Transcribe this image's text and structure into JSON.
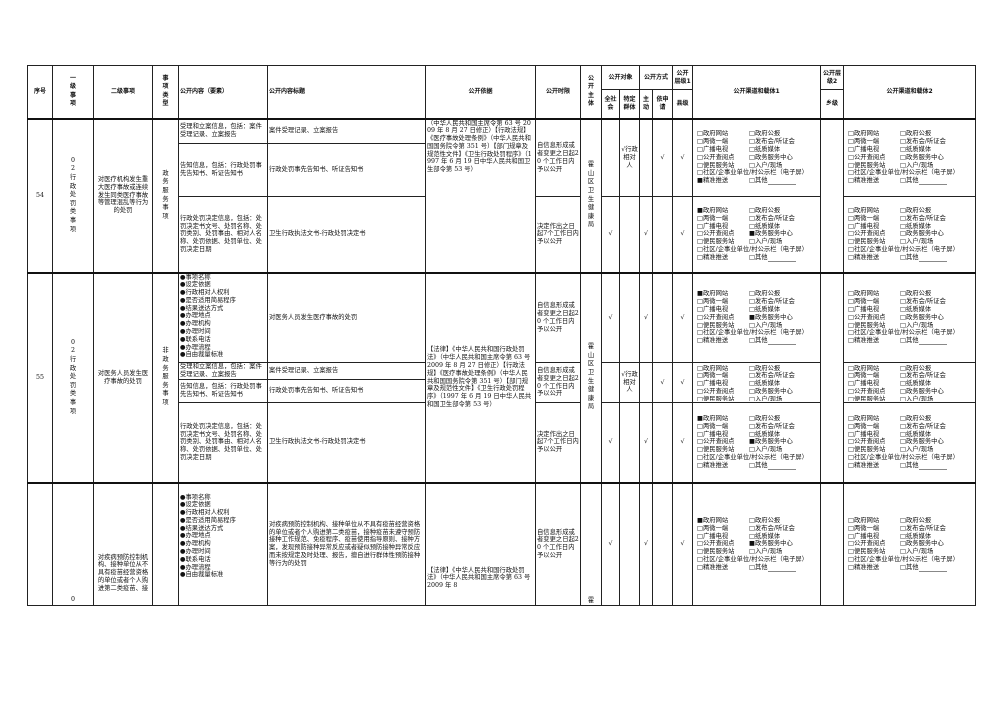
{
  "header": {
    "seq": "序号",
    "level1": "一级事项",
    "level2": "二级事项",
    "type": "事项类型",
    "content": "公开内容（要素）",
    "title": "公开内容标题",
    "basis": "公开依据",
    "time_limit": "公开时限",
    "subject": "公开主体",
    "target": "公开对象",
    "target_all": "全社会",
    "target_specific": "特定群体",
    "method": "公开方式",
    "method_active": "主动",
    "method_apply": "依申请",
    "level_1": "公开层级1",
    "county": "县级",
    "channel1": "公开渠道和载体1",
    "level_2": "公开层级2",
    "township": "乡级",
    "channel2": "公开渠道和载体2"
  },
  "channel_options": [
    "政府网站",
    "政府公报",
    "两微一端",
    "发布会/听证会",
    "广播电视",
    "纸质媒体",
    "公开查阅点",
    "政务服务中心",
    "便民服务站",
    "入户/现场",
    "社区/企事业单位/村公示栏（电子屏）",
    "精准推送",
    "其他"
  ],
  "bullets": [
    "事项名称",
    "设定依据",
    "行政相对人权利",
    "是否适用简易程序",
    "结果送达方式",
    "办理地点",
    "办理机构",
    "办理时间",
    "联系电话",
    "办理流程",
    "自由裁量标准"
  ],
  "texts": {
    "t_a": "自信息形成或者变更之日起20 个工作日内予以公开",
    "t_b": "决定作出之日起7个工作日内予以公开",
    "check": "√",
    "specific": "√行政相对人"
  },
  "rows": [
    {
      "seq": "54",
      "level1": "02行政处罚类事项",
      "level2": "对医疗机构发生重大医疗事故或连续发生同类医疗事故等管理混乱等行为的处罚",
      "type": "政务服务事项",
      "basis": "（中华人民共和国主席令第 63 号 2009 年 8 月 27 日修正）【行政法规】《医疗事故处理条例》（中华人民共和国国务院令第 351 号）【部门规章及规范性文件】《卫生行政处罚程序》（1997 年 6 月 19 日中华人民共和国卫生部令第 53 号）",
      "subject": "霍山区卫生健康局",
      "groups": [
        {
          "items": [
            {
              "content": "受理和立案信息，包括：案件受理记录、立案报告",
              "title": "案件受理记录、立案报告"
            },
            {
              "content": "告知信息，包括：行政处罚事先告知书、听证告知书",
              "title": "行政处罚事先告知书、听证告知书"
            }
          ],
          "time": "t_a",
          "all": false,
          "specific": true,
          "active": false,
          "apply": true,
          "county": true,
          "ch1": [
            "精准推送"
          ],
          "ch2": []
        },
        {
          "items": [
            {
              "content": "行政处罚决定信息，包括：处罚决定书文号、处罚名称、处罚类别、处罚事由、相对人名称、处罚依据、处罚单位、处罚决定日期",
              "title": "卫生行政执法文书-行政处罚决定书"
            }
          ],
          "time": "t_b",
          "all": true,
          "specific": false,
          "active": true,
          "apply": false,
          "county": true,
          "ch1": [
            "政府网站",
            "政务服务中心"
          ],
          "ch2": []
        }
      ]
    },
    {
      "seq": "55",
      "level1": "02行政处罚类事项",
      "level2": "对医务人员发生医疗事故的处罚",
      "type": "非政务服务事项",
      "basis": "【法律】《中华人民共和国行政处罚法》（中华人民共和国主席令第 63 号 2009 年 8 月 27 日修正）【行政法规】《医疗事故处理条例》（中华人民共和国国务院令第 351 号）【部门规章及规范性文件】《卫生行政处罚程序》（1997 年 6 月 19 日中华人民共和国卫生部令第 53 号）",
      "subject": "霍山区卫生健康局",
      "groups": [
        {
          "items": [
            {
              "content": "bullets",
              "title": "对医务人员发生医疗事故的处罚"
            }
          ],
          "time": "t_a",
          "all": true,
          "specific": false,
          "active": true,
          "apply": false,
          "county": true,
          "ch1": [
            "政府网站",
            "政务服务中心"
          ],
          "ch2": []
        },
        {
          "items": [
            {
              "content": "受理和立案信息，包括：案件受理记录、立案报告",
              "title": "案件受理记录、立案报告"
            },
            {
              "content": "告知信息，包括：行政处罚事先告知书、听证告知书",
              "title": "行政处罚事先告知书、听证告知书"
            }
          ],
          "time": "t_a",
          "all": false,
          "specific": true,
          "active": false,
          "apply": true,
          "county": true,
          "ch1": [],
          "ch2": []
        },
        {
          "items": [
            {
              "content": "行政处罚决定信息，包括：处罚决定书文号、处罚名称、处罚类别、处罚事由、相对人名称、处罚依据、处罚单位、处罚决定日期",
              "title": "卫生行政执法文书-行政处罚决定书"
            }
          ],
          "time": "t_b",
          "all": true,
          "specific": false,
          "active": true,
          "apply": false,
          "county": true,
          "ch1": [
            "政府网站",
            "政务服务中心"
          ],
          "ch2": []
        }
      ]
    },
    {
      "seq": "",
      "level1": "0",
      "level2": "对疾病预防控制机构、接种单位从不具有疫苗经营资格的单位或者个人购进第二类疫苗、接",
      "type": "",
      "basis": "【法律】《中华人民共和国行政处罚法》（中华人民共和国主席令第 63 号 2009 年 8",
      "subject": "霍",
      "groups": [
        {
          "items": [
            {
              "content": "bullets",
              "title": "对疾病预防控制机构、接种单位从不具有疫苗经营资格的单位或者个人购进第二类疫苗，接种疫苗未遵守预防接种工作规范、免疫程序、疫苗使用指导原则、接种方案，发现预防接种异常反应或者疑似预防接种异常反应而未按规定及时处理、报告，擅自进行群体性预防接种等行为的处罚"
            }
          ],
          "time": "t_a",
          "all": true,
          "specific": false,
          "active": true,
          "apply": false,
          "county": true,
          "ch1": [
            "政府网站",
            "政务服务中心"
          ],
          "ch2": []
        }
      ]
    }
  ]
}
